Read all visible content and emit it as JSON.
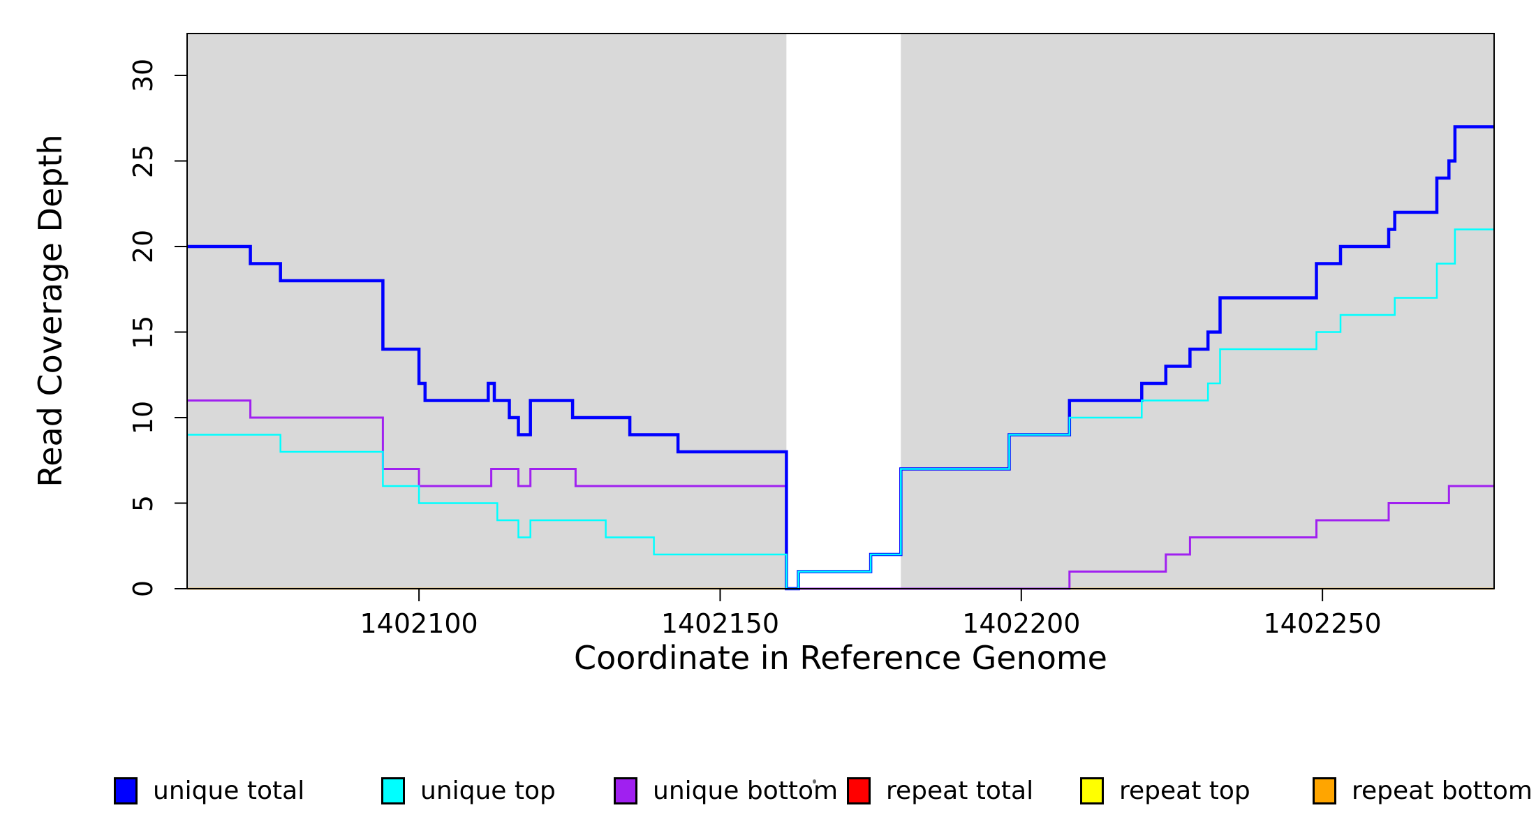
{
  "chart_data": {
    "type": "line",
    "subtype": "step-coverage-plot",
    "xlabel": "Coordinate in Reference Genome",
    "ylabel": "Read Coverage Depth",
    "xlim": [
      1402061.5,
      1402278.5
    ],
    "ylim": [
      0,
      32.45
    ],
    "x_ticks": [
      {
        "value": 1402100,
        "label": "1402100"
      },
      {
        "value": 1402150,
        "label": "1402150"
      },
      {
        "value": 1402200,
        "label": "1402200"
      },
      {
        "value": 1402250,
        "label": "1402250"
      }
    ],
    "y_ticks": [
      {
        "value": 0,
        "label": "0"
      },
      {
        "value": 5,
        "label": "5"
      },
      {
        "value": 10,
        "label": "10"
      },
      {
        "value": 15,
        "label": "15"
      },
      {
        "value": 20,
        "label": "20"
      },
      {
        "value": 25,
        "label": "25"
      },
      {
        "value": 30,
        "label": "30"
      }
    ],
    "grid": false,
    "background_color": "#ffffff",
    "shaded_region_color": "#d9d9d9",
    "shaded_regions": [
      [
        1402061.5,
        1402161
      ],
      [
        1402180,
        1402278.5
      ]
    ],
    "unshaded_gap_region": [
      1402161,
      1402180
    ],
    "series": [
      {
        "name": "repeat total",
        "color": "#FF0000",
        "width": 2,
        "steps": [
          [
            1402061.5,
            0
          ]
        ]
      },
      {
        "name": "repeat top",
        "color": "#FFFF00",
        "width": 2,
        "steps": [
          [
            1402061.5,
            0
          ]
        ]
      },
      {
        "name": "repeat bottom",
        "color": "#FFA500",
        "width": 2.5,
        "steps": [
          [
            1402061.5,
            0
          ]
        ]
      },
      {
        "name": "unique bottom",
        "color": "#A020F0",
        "width": 3,
        "steps": [
          [
            1402061.5,
            11
          ],
          [
            1402072,
            10
          ],
          [
            1402094,
            7
          ],
          [
            1402100,
            6
          ],
          [
            1402112,
            7
          ],
          [
            1402116.5,
            6
          ],
          [
            1402118.5,
            7
          ],
          [
            1402126,
            6
          ],
          [
            1402161,
            0
          ],
          [
            1402208,
            1
          ],
          [
            1402224,
            2
          ],
          [
            1402228,
            3
          ],
          [
            1402249,
            4
          ],
          [
            1402261,
            5
          ],
          [
            1402271,
            6
          ]
        ]
      },
      {
        "name": "unique total",
        "color": "#0000FF",
        "width": 4.5,
        "steps": [
          [
            1402061.5,
            20
          ],
          [
            1402072,
            19
          ],
          [
            1402077,
            18
          ],
          [
            1402094,
            14
          ],
          [
            1402100,
            12
          ],
          [
            1402101,
            11
          ],
          [
            1402111.5,
            12
          ],
          [
            1402112.5,
            11
          ],
          [
            1402115,
            10
          ],
          [
            1402116.5,
            9
          ],
          [
            1402118.5,
            11
          ],
          [
            1402125.5,
            10
          ],
          [
            1402135,
            9
          ],
          [
            1402143,
            8
          ],
          [
            1402161,
            0
          ],
          [
            1402163,
            1
          ],
          [
            1402175,
            2
          ],
          [
            1402180,
            7
          ],
          [
            1402198,
            9
          ],
          [
            1402208,
            11
          ],
          [
            1402220,
            12
          ],
          [
            1402224,
            13
          ],
          [
            1402228,
            14
          ],
          [
            1402231,
            15
          ],
          [
            1402233,
            17
          ],
          [
            1402249,
            19
          ],
          [
            1402253,
            20
          ],
          [
            1402261,
            21
          ],
          [
            1402262,
            22
          ],
          [
            1402269,
            24
          ],
          [
            1402271,
            25
          ],
          [
            1402272,
            27
          ]
        ]
      },
      {
        "name": "unique top",
        "color": "#00FFFF",
        "width": 2.5,
        "steps": [
          [
            1402061.5,
            9
          ],
          [
            1402077,
            8
          ],
          [
            1402094,
            6
          ],
          [
            1402100,
            5
          ],
          [
            1402113,
            4
          ],
          [
            1402116.5,
            3
          ],
          [
            1402118.5,
            4
          ],
          [
            1402131,
            3
          ],
          [
            1402139,
            2
          ],
          [
            1402161,
            0
          ],
          [
            1402163,
            1
          ],
          [
            1402175,
            2
          ],
          [
            1402180,
            7
          ],
          [
            1402198,
            9
          ],
          [
            1402208,
            10
          ],
          [
            1402220,
            11
          ],
          [
            1402231,
            12
          ],
          [
            1402233,
            14
          ],
          [
            1402249,
            15
          ],
          [
            1402253,
            16
          ],
          [
            1402262,
            17
          ],
          [
            1402269,
            19
          ],
          [
            1402272,
            21
          ]
        ]
      }
    ],
    "legend": {
      "position": "bottom",
      "items": [
        {
          "label": "unique total",
          "color": "#0000FF"
        },
        {
          "label": "unique top",
          "color": "#00FFFF"
        },
        {
          "label": "unique bottom",
          "color": "#A020F0"
        },
        {
          "label": "repeat total",
          "color": "#FF0000"
        },
        {
          "label": "repeat top",
          "color": "#FFFF00"
        },
        {
          "label": "repeat bottom",
          "color": "#FFA500"
        }
      ]
    }
  }
}
